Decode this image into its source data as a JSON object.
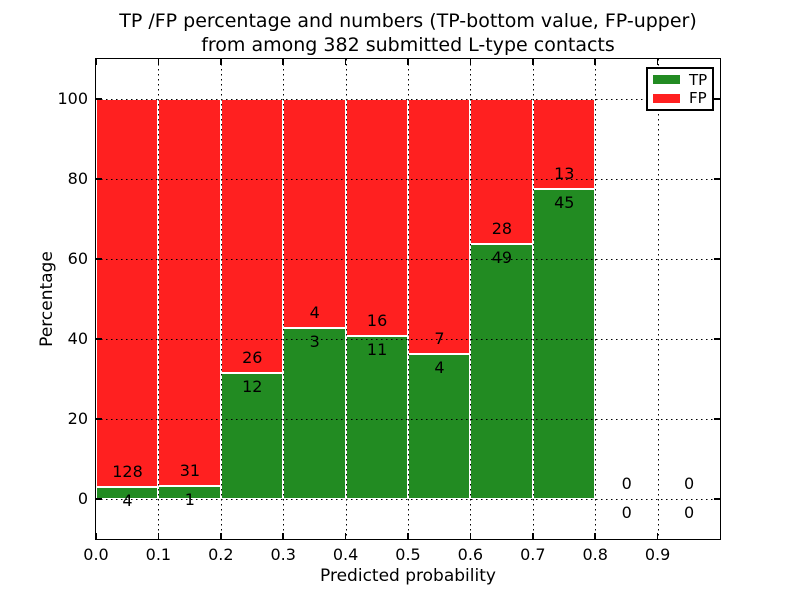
{
  "chart_data": {
    "type": "bar",
    "variant": "stacked-percentage-histogram",
    "title_line1": "TP /FP percentage and numbers (TP-bottom value, FP-upper)",
    "title_line2": "from among 382 submitted L-type contacts",
    "xlabel": "Predicted probability",
    "ylabel": "Percentage",
    "total_submitted": 382,
    "xlim": [
      0.0,
      1.0
    ],
    "ylim": [
      -10,
      110
    ],
    "xtick_labels": [
      "0.0",
      "0.1",
      "0.2",
      "0.3",
      "0.4",
      "0.5",
      "0.6",
      "0.7",
      "0.8",
      "0.9"
    ],
    "ytick_labels": [
      "0",
      "20",
      "40",
      "60",
      "80",
      "100"
    ],
    "yticks": [
      0,
      20,
      40,
      60,
      80,
      100
    ],
    "grid": "dotted, both axes, drawn above bars",
    "bin_width": 0.1,
    "bin_starts": [
      0.0,
      0.1,
      0.2,
      0.3,
      0.4,
      0.5,
      0.6,
      0.7,
      0.8,
      0.9
    ],
    "series": [
      {
        "name": "TP",
        "color": "#228b22",
        "counts": [
          4,
          1,
          12,
          3,
          11,
          4,
          49,
          45,
          0,
          0
        ]
      },
      {
        "name": "FP",
        "color": "#ff2020",
        "counts": [
          128,
          31,
          26,
          4,
          16,
          7,
          28,
          13,
          0,
          0
        ]
      }
    ],
    "tp_percent": [
      3.03,
      3.13,
      31.58,
      42.86,
      40.74,
      36.36,
      63.64,
      77.59,
      0,
      0
    ],
    "bar_edge_color": "#ffffff",
    "legend": {
      "position": "upper right",
      "entries": [
        {
          "label": "TP",
          "color": "#228b22"
        },
        {
          "label": "FP",
          "color": "#ff2020"
        }
      ]
    }
  }
}
